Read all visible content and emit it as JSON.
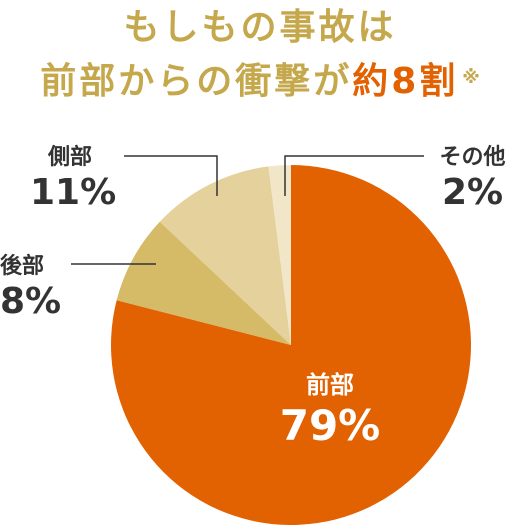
{
  "header": {
    "line1": "もしもの事故は",
    "line2_prefix": "前部からの衝撃が",
    "line2_highlight": "約8割",
    "note_mark": "※"
  },
  "colors": {
    "title": "#c5a74c",
    "highlight": "#e26100",
    "front": "#e26100",
    "rear": "#d5ba68",
    "side": "#e5d19c",
    "other": "#f1e6c8",
    "leader": "#333333"
  },
  "chart_data": {
    "type": "pie",
    "title": "",
    "slices": [
      {
        "label": "前部",
        "value": 79,
        "value_label": "79%",
        "color": "#e26100"
      },
      {
        "label": "後部",
        "value": 8,
        "value_label": "8%",
        "color": "#d5ba68"
      },
      {
        "label": "側部",
        "value": 11,
        "value_label": "11%",
        "color": "#e5d19c"
      },
      {
        "label": "その他",
        "value": 2,
        "value_label": "2%",
        "color": "#f1e6c8"
      }
    ],
    "start": "12 o'clock",
    "direction": "clockwise"
  }
}
